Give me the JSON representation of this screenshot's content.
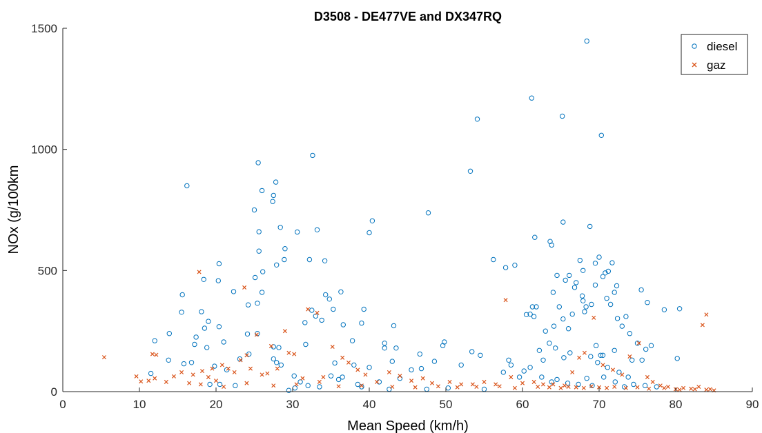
{
  "chart_data": {
    "type": "scatter",
    "title": "D3508 - DE477VE and DX347RQ",
    "xlabel": "Mean Speed (km/h)",
    "ylabel": "NOx (g/100km",
    "xlim": [
      0,
      90
    ],
    "ylim": [
      0,
      1500
    ],
    "xticks": [
      "0",
      "10",
      "20",
      "30",
      "40",
      "50",
      "60",
      "70",
      "80",
      "90"
    ],
    "yticks": [
      "0",
      "500",
      "1000",
      "1500"
    ],
    "grid": false,
    "legend_position": "top-right",
    "series": [
      {
        "name": "diesel",
        "marker": "circle",
        "color": "#0072BD",
        "points": [
          [
            16.2,
            850
          ],
          [
            25.5,
            945
          ],
          [
            27.8,
            865
          ],
          [
            26.0,
            830
          ],
          [
            27.5,
            810
          ],
          [
            27.4,
            785
          ],
          [
            25.0,
            750
          ],
          [
            25.6,
            660
          ],
          [
            28.4,
            678
          ],
          [
            30.6,
            659
          ],
          [
            33.2,
            668
          ],
          [
            32.6,
            975
          ],
          [
            40.4,
            705
          ],
          [
            40.0,
            656
          ],
          [
            47.7,
            738
          ],
          [
            53.2,
            910
          ],
          [
            54.1,
            1125
          ],
          [
            61.2,
            1212
          ],
          [
            65.2,
            1137
          ],
          [
            68.4,
            1447
          ],
          [
            70.3,
            1058
          ],
          [
            65.3,
            700
          ],
          [
            68.8,
            682
          ],
          [
            61.6,
            637
          ],
          [
            63.6,
            620
          ],
          [
            63.8,
            605
          ],
          [
            56.2,
            545
          ],
          [
            59.0,
            522
          ],
          [
            57.8,
            512
          ],
          [
            67.5,
            542
          ],
          [
            70.0,
            555
          ],
          [
            71.7,
            532
          ],
          [
            69.5,
            530
          ],
          [
            72.3,
            437
          ],
          [
            75.5,
            420
          ],
          [
            80.5,
            342
          ],
          [
            78.5,
            338
          ],
          [
            76.3,
            368
          ],
          [
            20.4,
            528
          ],
          [
            20.3,
            458
          ],
          [
            22.3,
            413
          ],
          [
            29.0,
            590
          ],
          [
            28.9,
            545
          ],
          [
            27.9,
            523
          ],
          [
            25.6,
            580
          ],
          [
            26.1,
            495
          ],
          [
            32.2,
            545
          ],
          [
            34.2,
            540
          ],
          [
            25.1,
            471
          ],
          [
            18.4,
            463
          ],
          [
            15.6,
            400
          ],
          [
            15.5,
            328
          ],
          [
            18.1,
            330
          ],
          [
            19.0,
            290
          ],
          [
            18.5,
            262
          ],
          [
            20.4,
            268
          ],
          [
            17.4,
            225
          ],
          [
            24.2,
            358
          ],
          [
            24.1,
            238
          ],
          [
            25.4,
            365
          ],
          [
            26.0,
            410
          ],
          [
            34.3,
            400
          ],
          [
            34.8,
            382
          ],
          [
            33.0,
            312
          ],
          [
            32.5,
            336
          ],
          [
            33.8,
            295
          ],
          [
            36.3,
            412
          ],
          [
            35.3,
            340
          ],
          [
            39.3,
            340
          ],
          [
            39.0,
            283
          ],
          [
            36.6,
            276
          ],
          [
            43.2,
            272
          ],
          [
            31.6,
            285
          ],
          [
            37.8,
            210
          ],
          [
            42.0,
            200
          ],
          [
            42.0,
            180
          ],
          [
            43.5,
            180
          ],
          [
            49.8,
            205
          ],
          [
            49.6,
            190
          ],
          [
            46.6,
            155
          ],
          [
            43.0,
            125
          ],
          [
            45.5,
            90
          ],
          [
            40.0,
            100
          ],
          [
            38.0,
            110
          ],
          [
            35.5,
            118
          ],
          [
            31.7,
            195
          ],
          [
            28.2,
            182
          ],
          [
            27.5,
            185
          ],
          [
            28.5,
            110
          ],
          [
            27.9,
            120
          ],
          [
            27.5,
            135
          ],
          [
            25.4,
            240
          ],
          [
            24.3,
            155
          ],
          [
            23.1,
            135
          ],
          [
            21.0,
            205
          ],
          [
            18.8,
            182
          ],
          [
            17.2,
            195
          ],
          [
            19.8,
            105
          ],
          [
            21.4,
            90
          ],
          [
            13.9,
            240
          ],
          [
            12.0,
            210
          ],
          [
            13.8,
            130
          ],
          [
            11.5,
            75
          ],
          [
            15.8,
            115
          ],
          [
            16.8,
            120
          ],
          [
            19.2,
            30
          ],
          [
            20.5,
            30
          ],
          [
            22.5,
            25
          ],
          [
            60.5,
            318
          ],
          [
            61.0,
            320
          ],
          [
            61.3,
            350
          ],
          [
            61.8,
            350
          ],
          [
            61.5,
            310
          ],
          [
            64.8,
            350
          ],
          [
            65.3,
            300
          ],
          [
            66.5,
            320
          ],
          [
            66.0,
            260
          ],
          [
            67.8,
            395
          ],
          [
            67.9,
            375
          ],
          [
            68.3,
            350
          ],
          [
            68.1,
            330
          ],
          [
            69.0,
            360
          ],
          [
            67.0,
            450
          ],
          [
            67.9,
            500
          ],
          [
            69.5,
            440
          ],
          [
            70.8,
            490
          ],
          [
            71.2,
            497
          ],
          [
            70.5,
            475
          ],
          [
            72.0,
            410
          ],
          [
            71.0,
            385
          ],
          [
            71.5,
            360
          ],
          [
            72.4,
            302
          ],
          [
            73.5,
            310
          ],
          [
            73.0,
            270
          ],
          [
            74.0,
            240
          ],
          [
            75.0,
            200
          ],
          [
            76.1,
            175
          ],
          [
            76.8,
            190
          ],
          [
            75.6,
            130
          ],
          [
            74.3,
            130
          ],
          [
            72.0,
            170
          ],
          [
            70.5,
            150
          ],
          [
            69.8,
            120
          ],
          [
            68.9,
            145
          ],
          [
            66.2,
            160
          ],
          [
            65.4,
            140
          ],
          [
            64.3,
            180
          ],
          [
            63.5,
            200
          ],
          [
            62.2,
            170
          ],
          [
            62.7,
            130
          ],
          [
            61.0,
            100
          ],
          [
            60.2,
            85
          ],
          [
            58.5,
            110
          ],
          [
            58.2,
            130
          ],
          [
            57.5,
            80
          ],
          [
            59.6,
            60
          ],
          [
            63.0,
            250
          ],
          [
            64.1,
            270
          ],
          [
            64.0,
            410
          ],
          [
            64.5,
            480
          ],
          [
            65.6,
            460
          ],
          [
            66.1,
            480
          ],
          [
            66.8,
            430
          ],
          [
            69.6,
            190
          ],
          [
            70.2,
            150
          ],
          [
            71.1,
            100
          ],
          [
            72.6,
            80
          ],
          [
            73.8,
            60
          ],
          [
            62.5,
            60
          ],
          [
            63.8,
            40
          ],
          [
            64.5,
            50
          ],
          [
            65.9,
            35
          ],
          [
            67.3,
            30
          ],
          [
            68.4,
            55
          ],
          [
            69.1,
            25
          ],
          [
            70.6,
            60
          ],
          [
            72.1,
            40
          ],
          [
            73.3,
            20
          ],
          [
            74.5,
            30
          ],
          [
            76.0,
            25
          ],
          [
            77.5,
            20
          ],
          [
            80.2,
            137
          ],
          [
            54.5,
            150
          ],
          [
            53.4,
            165
          ],
          [
            52.0,
            110
          ],
          [
            48.5,
            125
          ],
          [
            46.8,
            95
          ],
          [
            44.0,
            55
          ],
          [
            41.3,
            40
          ],
          [
            38.5,
            30
          ],
          [
            36.0,
            50
          ],
          [
            33.5,
            20
          ],
          [
            30.2,
            65
          ],
          [
            29.5,
            5
          ],
          [
            30.3,
            15
          ],
          [
            31.0,
            40
          ],
          [
            32.0,
            25
          ],
          [
            35.0,
            65
          ],
          [
            36.5,
            60
          ],
          [
            39.0,
            20
          ],
          [
            42.6,
            10
          ],
          [
            47.5,
            10
          ],
          [
            50.3,
            15
          ],
          [
            55.0,
            10
          ]
        ]
      },
      {
        "name": "gaz",
        "marker": "x",
        "color": "#D95319",
        "points": [
          [
            5.4,
            142
          ],
          [
            9.6,
            63
          ],
          [
            10.2,
            42
          ],
          [
            11.2,
            45
          ],
          [
            11.7,
            155
          ],
          [
            12.2,
            152
          ],
          [
            12.0,
            55
          ],
          [
            13.5,
            40
          ],
          [
            14.5,
            63
          ],
          [
            15.5,
            80
          ],
          [
            16.5,
            35
          ],
          [
            17.0,
            70
          ],
          [
            17.8,
            494
          ],
          [
            18.2,
            85
          ],
          [
            19.0,
            60
          ],
          [
            19.5,
            95
          ],
          [
            20.0,
            45
          ],
          [
            20.8,
            110
          ],
          [
            21.6,
            95
          ],
          [
            22.4,
            80
          ],
          [
            23.2,
            130
          ],
          [
            23.7,
            430
          ],
          [
            24.0,
            150
          ],
          [
            24.5,
            95
          ],
          [
            25.3,
            235
          ],
          [
            26.0,
            70
          ],
          [
            26.7,
            75
          ],
          [
            27.2,
            188
          ],
          [
            28.0,
            95
          ],
          [
            29.0,
            250
          ],
          [
            29.5,
            160
          ],
          [
            30.2,
            155
          ],
          [
            31.3,
            55
          ],
          [
            32.0,
            340
          ],
          [
            33.2,
            325
          ],
          [
            34.0,
            60
          ],
          [
            35.2,
            185
          ],
          [
            36.5,
            140
          ],
          [
            37.3,
            120
          ],
          [
            38.5,
            90
          ],
          [
            39.5,
            70
          ],
          [
            41.0,
            40
          ],
          [
            42.6,
            80
          ],
          [
            44.0,
            65
          ],
          [
            45.5,
            45
          ],
          [
            47.0,
            55
          ],
          [
            48.2,
            35
          ],
          [
            50.5,
            40
          ],
          [
            52.0,
            30
          ],
          [
            53.5,
            30
          ],
          [
            55.0,
            40
          ],
          [
            56.5,
            30
          ],
          [
            57.8,
            378
          ],
          [
            58.5,
            60
          ],
          [
            60.0,
            35
          ],
          [
            61.5,
            40
          ],
          [
            62.7,
            30
          ],
          [
            64.0,
            30
          ],
          [
            65.5,
            25
          ],
          [
            66.5,
            80
          ],
          [
            67.4,
            140
          ],
          [
            68.1,
            160
          ],
          [
            69.3,
            305
          ],
          [
            70.5,
            110
          ],
          [
            71.8,
            90
          ],
          [
            73.0,
            70
          ],
          [
            74.0,
            145
          ],
          [
            75.2,
            200
          ],
          [
            76.3,
            60
          ],
          [
            77.0,
            40
          ],
          [
            78.0,
            25
          ],
          [
            79.0,
            20
          ],
          [
            80.0,
            10
          ],
          [
            81.0,
            15
          ],
          [
            82.0,
            12
          ],
          [
            83.0,
            20
          ],
          [
            83.5,
            275
          ],
          [
            84.0,
            318
          ],
          [
            84.5,
            10
          ],
          [
            85.0,
            5
          ],
          [
            18.0,
            30
          ],
          [
            21.0,
            20
          ],
          [
            24.0,
            35
          ],
          [
            27.5,
            25
          ],
          [
            30.5,
            30
          ],
          [
            33.5,
            40
          ],
          [
            36.0,
            22
          ],
          [
            39.0,
            25
          ],
          [
            43.0,
            20
          ],
          [
            46.0,
            18
          ],
          [
            49.0,
            22
          ],
          [
            51.5,
            18
          ],
          [
            54.0,
            20
          ],
          [
            57.0,
            22
          ],
          [
            59.0,
            15
          ],
          [
            62.0,
            20
          ],
          [
            63.5,
            18
          ],
          [
            65.0,
            15
          ],
          [
            66.0,
            20
          ],
          [
            67.0,
            18
          ],
          [
            68.0,
            15
          ],
          [
            69.0,
            22
          ],
          [
            70.0,
            18
          ],
          [
            71.0,
            15
          ],
          [
            72.0,
            20
          ],
          [
            73.5,
            15
          ],
          [
            75.0,
            18
          ],
          [
            76.5,
            12
          ],
          [
            78.5,
            15
          ],
          [
            80.5,
            8
          ],
          [
            82.5,
            10
          ],
          [
            84.0,
            8
          ]
        ]
      }
    ]
  }
}
